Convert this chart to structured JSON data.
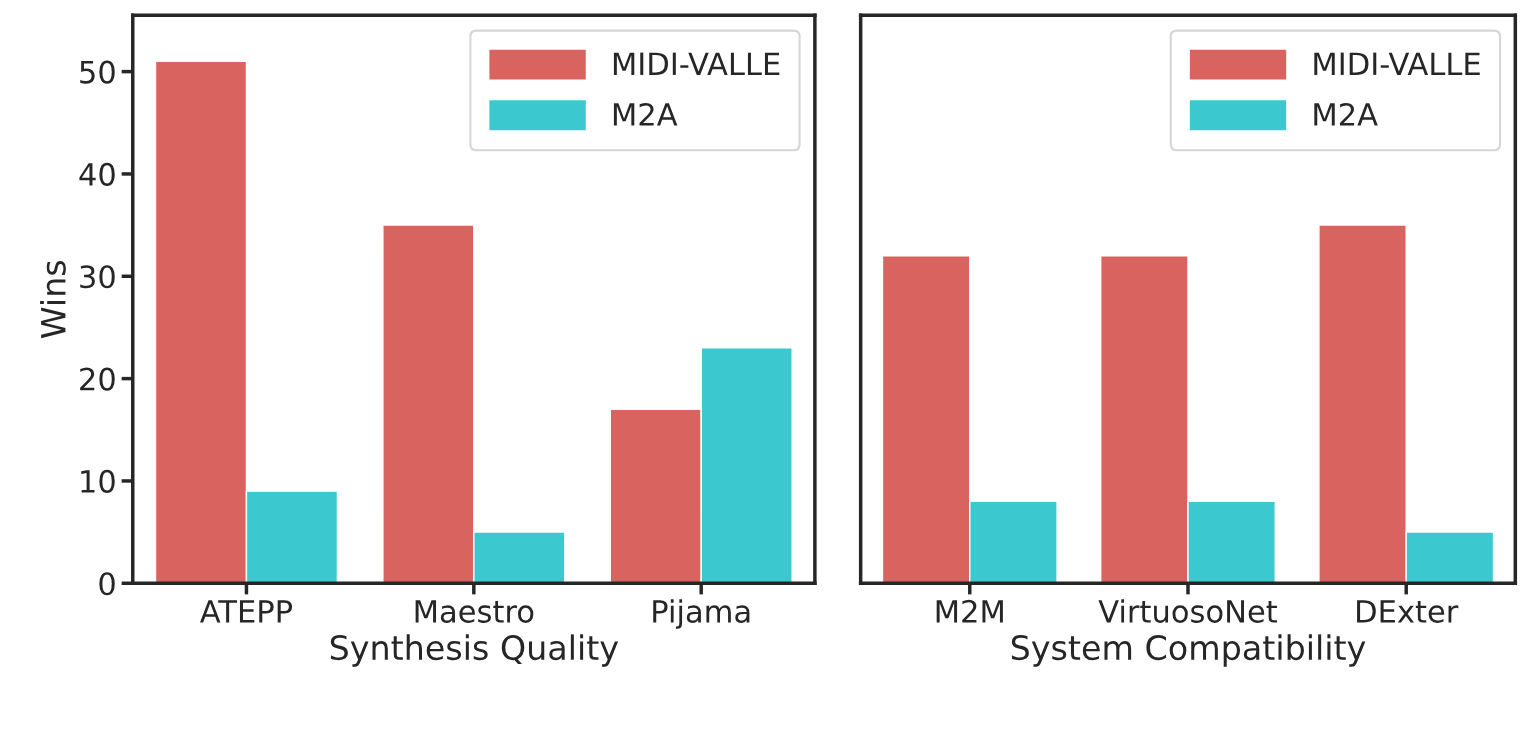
{
  "chart_data": [
    {
      "type": "bar",
      "xlabel": "Synthesis Quality",
      "ylabel": "Wins",
      "categories": [
        "ATEPP",
        "Maestro",
        "Pijama"
      ],
      "series": [
        {
          "name": "MIDI-VALLE",
          "color": "#d9645f",
          "values": [
            51,
            35,
            17
          ]
        },
        {
          "name": "M2A",
          "color": "#3bc8cf",
          "values": [
            9,
            5,
            23
          ]
        }
      ],
      "ylim": [
        0,
        55.5
      ],
      "yticks": [
        0,
        10,
        20,
        30,
        40,
        50
      ],
      "legend": "top right"
    },
    {
      "type": "bar",
      "xlabel": "System Compatibility",
      "categories": [
        "M2M",
        "VirtuosoNet",
        "DExter"
      ],
      "series": [
        {
          "name": "MIDI-VALLE",
          "color": "#d9645f",
          "values": [
            32,
            32,
            35
          ]
        },
        {
          "name": "M2A",
          "color": "#3bc8cf",
          "values": [
            8,
            8,
            5
          ]
        }
      ],
      "ylim": [
        0,
        55.5
      ],
      "tick_labels": "x",
      "legend": "top right"
    }
  ]
}
